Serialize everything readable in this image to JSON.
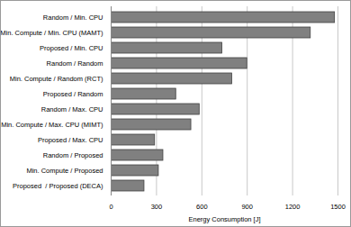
{
  "chart_data": {
    "type": "bar",
    "orientation": "horizontal",
    "x_label": "Energy Consumption [J]",
    "categories": [
      "Random / Min. CPU",
      "Min. Compute / Min. CPU (MAMT)",
      "Proposed / Min. CPU",
      "Random / Random",
      "Min. Compute / Random (RCT)",
      "Proposed / Random",
      "Random / Max. CPU",
      "Min. Compute / Max. CPU (MIMT)",
      "Proposed / Max. CPU",
      "Random / Proposed",
      "Min. Compute / Proposed",
      "Proposed  / Proposed (DECA)"
    ],
    "values": [
      1480,
      1320,
      735,
      900,
      800,
      430,
      585,
      530,
      290,
      345,
      315,
      220
    ],
    "color": "#808080",
    "xlim": [
      0,
      1500
    ],
    "xticks": [
      0,
      300,
      600,
      900,
      1200,
      1500
    ],
    "grid": true
  }
}
